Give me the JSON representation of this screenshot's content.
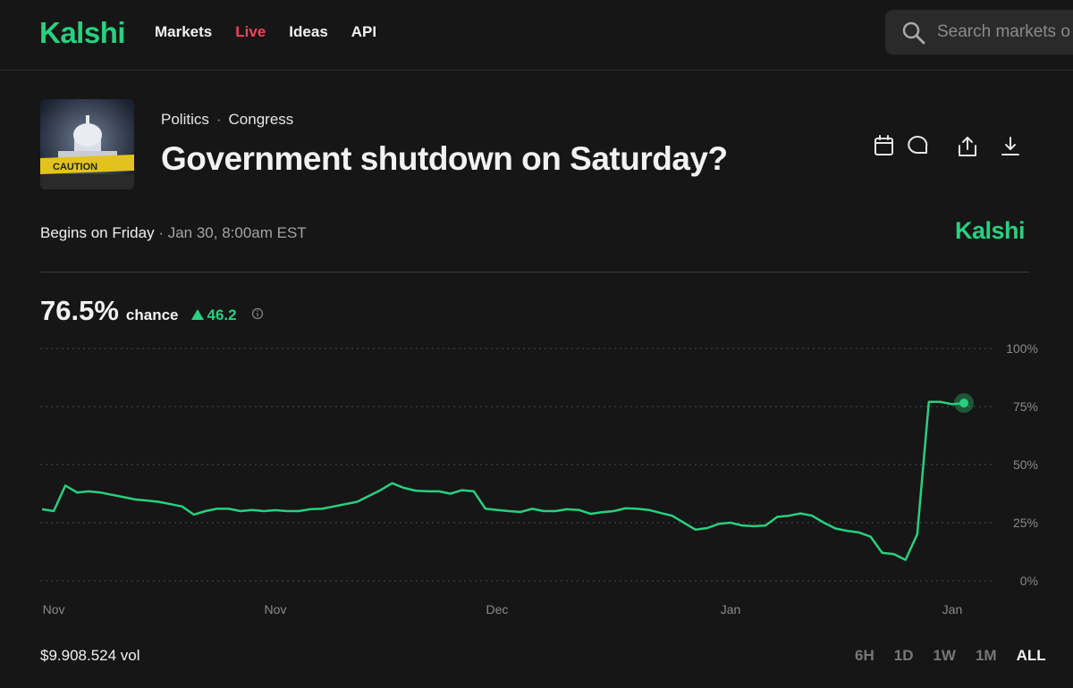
{
  "header": {
    "logo": "Kalshi",
    "nav": [
      "Markets",
      "Live",
      "Ideas",
      "API"
    ],
    "search_placeholder": "Search markets o"
  },
  "market": {
    "thumbnail_text": "CAUTION",
    "breadcrumb": [
      "Politics",
      "Congress"
    ],
    "title": "Government shutdown on Saturday?",
    "begins": "Begins on Friday",
    "date": "Jan 30, 8:00am EST",
    "brand": "Kalshi",
    "chance": "76.5%",
    "chance_word": "chance",
    "change": "46.2"
  },
  "chart_data": {
    "type": "line",
    "color": "#28d07f",
    "grid": true,
    "categories": [
      null,
      "Nov",
      null,
      null,
      null,
      null,
      null,
      null,
      null,
      null,
      null,
      null,
      null,
      null,
      null,
      null,
      null,
      null,
      null,
      null,
      "Nov",
      null,
      null,
      null,
      null,
      null,
      null,
      null,
      null,
      null,
      null,
      null,
      null,
      null,
      null,
      null,
      null,
      null,
      null,
      "Dec",
      null,
      null,
      null,
      null,
      null,
      null,
      null,
      null,
      null,
      null,
      null,
      null,
      null,
      null,
      null,
      null,
      null,
      null,
      null,
      "Jan",
      null,
      null,
      null,
      null,
      null,
      null,
      null,
      null,
      null,
      null,
      null,
      null,
      null,
      null,
      null,
      null,
      null,
      null,
      "Jan",
      null
    ],
    "values": [
      30.8,
      30,
      41,
      38,
      38.5,
      38,
      37,
      36,
      35,
      34.5,
      34,
      33,
      32,
      28.5,
      30,
      31,
      31,
      30,
      30.5,
      30,
      30.4,
      30,
      30,
      30.8,
      31,
      32,
      33,
      34,
      36.5,
      39,
      42,
      40,
      38.8,
      38.5,
      38.5,
      37.5,
      39,
      38.5,
      31,
      30.5,
      30,
      29.6,
      31,
      30,
      30,
      30.8,
      30.5,
      28.8,
      29.5,
      30,
      31.2,
      31,
      30.5,
      29.2,
      28,
      25,
      22,
      22.7,
      24.5,
      25,
      23.8,
      23.5,
      23.8,
      27.5,
      28,
      29,
      28,
      25,
      22.5,
      21.5,
      20.8,
      19,
      12,
      11.5,
      9,
      20,
      77,
      77,
      76,
      76.5
    ],
    "ylim": [
      0,
      100
    ],
    "yticks": [
      {
        "value": 0,
        "label": "0%"
      },
      {
        "value": 25,
        "label": "25%"
      },
      {
        "value": 50,
        "label": "50%"
      },
      {
        "value": 75,
        "label": "75%"
      },
      {
        "value": 100,
        "label": "100%"
      }
    ]
  },
  "footer": {
    "volume": "$9.908.524 vol",
    "ranges": [
      "6H",
      "1D",
      "1W",
      "1M",
      "ALL"
    ]
  }
}
